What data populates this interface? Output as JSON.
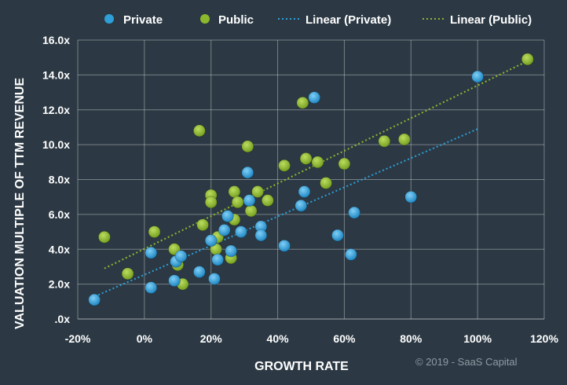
{
  "chart_data": {
    "type": "scatter",
    "title": "",
    "xlabel": "GROWTH RATE",
    "ylabel": "VALUATION MULTIPLE OF TTM REVENUE",
    "xlim": [
      -0.2,
      1.2
    ],
    "ylim": [
      0,
      16
    ],
    "x_ticks": [
      -0.2,
      0,
      0.2,
      0.4,
      0.6,
      0.8,
      1.0,
      1.2
    ],
    "x_tick_labels": [
      "-20%",
      "0%",
      "20%",
      "40%",
      "60%",
      "80%",
      "100%",
      "120%"
    ],
    "y_ticks": [
      0,
      2,
      4,
      6,
      8,
      10,
      12,
      14,
      16
    ],
    "y_tick_labels": [
      ".0x",
      "2.0x",
      "4.0x",
      "6.0x",
      "8.0x",
      "10.0x",
      "12.0x",
      "14.0x",
      "16.0x"
    ],
    "grid": true,
    "legend": [
      "Private",
      "Public",
      "Linear (Private)",
      "Linear (Public)"
    ],
    "colors": {
      "private": "#2e9fd8",
      "public": "#8cb82e",
      "background": "#2c3944",
      "grid": "#ffffff"
    },
    "series": [
      {
        "name": "Private",
        "points": [
          [
            -0.15,
            1.1
          ],
          [
            0.02,
            1.8
          ],
          [
            0.02,
            3.8
          ],
          [
            0.09,
            2.2
          ],
          [
            0.095,
            3.3
          ],
          [
            0.11,
            3.6
          ],
          [
            0.165,
            2.7
          ],
          [
            0.21,
            2.3
          ],
          [
            0.2,
            4.5
          ],
          [
            0.22,
            3.4
          ],
          [
            0.24,
            5.1
          ],
          [
            0.25,
            5.9
          ],
          [
            0.26,
            3.9
          ],
          [
            0.29,
            5.0
          ],
          [
            0.31,
            8.4
          ],
          [
            0.315,
            6.8
          ],
          [
            0.35,
            5.3
          ],
          [
            0.35,
            4.8
          ],
          [
            0.42,
            4.2
          ],
          [
            0.47,
            6.5
          ],
          [
            0.48,
            7.3
          ],
          [
            0.51,
            12.7
          ],
          [
            0.58,
            4.8
          ],
          [
            0.62,
            3.7
          ],
          [
            0.63,
            6.1
          ],
          [
            0.8,
            7.0
          ],
          [
            1.0,
            13.9
          ]
        ]
      },
      {
        "name": "Public",
        "points": [
          [
            -0.12,
            4.7
          ],
          [
            -0.05,
            2.6
          ],
          [
            0.03,
            5.0
          ],
          [
            0.09,
            4.0
          ],
          [
            0.1,
            3.1
          ],
          [
            0.115,
            2.0
          ],
          [
            0.165,
            10.8
          ],
          [
            0.175,
            5.4
          ],
          [
            0.2,
            7.1
          ],
          [
            0.2,
            6.7
          ],
          [
            0.215,
            4.0
          ],
          [
            0.22,
            4.7
          ],
          [
            0.26,
            3.5
          ],
          [
            0.27,
            7.3
          ],
          [
            0.27,
            5.7
          ],
          [
            0.28,
            6.7
          ],
          [
            0.31,
            9.9
          ],
          [
            0.32,
            6.2
          ],
          [
            0.34,
            7.3
          ],
          [
            0.37,
            6.8
          ],
          [
            0.42,
            8.8
          ],
          [
            0.475,
            12.4
          ],
          [
            0.485,
            9.2
          ],
          [
            0.52,
            9.0
          ],
          [
            0.545,
            7.8
          ],
          [
            0.6,
            8.9
          ],
          [
            0.72,
            10.2
          ],
          [
            0.78,
            10.3
          ],
          [
            1.15,
            14.9
          ]
        ]
      }
    ],
    "trendlines": [
      {
        "name": "Linear (Private)",
        "x": [
          -0.16,
          1.0
        ],
        "y": [
          1.2,
          10.9
        ]
      },
      {
        "name": "Linear (Public)",
        "x": [
          -0.12,
          1.15
        ],
        "y": [
          2.9,
          14.8
        ]
      }
    ],
    "copyright": "© 2019 - SaaS Capital"
  }
}
